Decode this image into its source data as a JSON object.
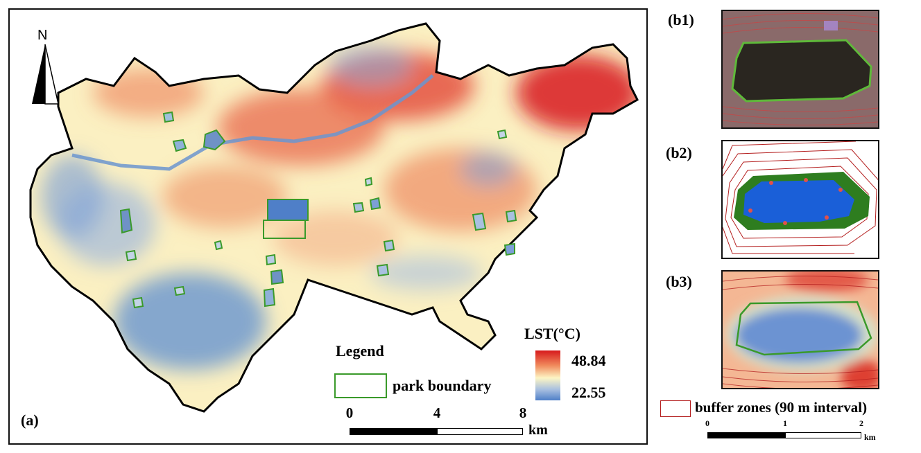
{
  "main_map": {
    "panel_label": "(a)",
    "north_label": "N",
    "legend_title": "Legend",
    "park_boundary_label": "park boundary",
    "lst_title": "LST(°C)",
    "lst_max": "48.84",
    "lst_min": "22.55",
    "scale": {
      "ticks": [
        "0",
        "4",
        "8"
      ],
      "unit": "km"
    },
    "colors": {
      "hot": "#d7191c",
      "mid": "#fdf5c4",
      "cool": "#4f7fc8",
      "park": "#3a9a2a"
    }
  },
  "insets": {
    "b1_label": "(b1)",
    "b2_label": "(b2)",
    "b3_label": "(b3)",
    "buffer_label": "buffer zones (90 m interval)",
    "scale": {
      "ticks": [
        "0",
        "1",
        "2"
      ],
      "unit": "km"
    },
    "colors": {
      "buffer_line": "#b41e1e",
      "water": "#1a5fd8",
      "vegetation": "#2e7d1f"
    }
  }
}
